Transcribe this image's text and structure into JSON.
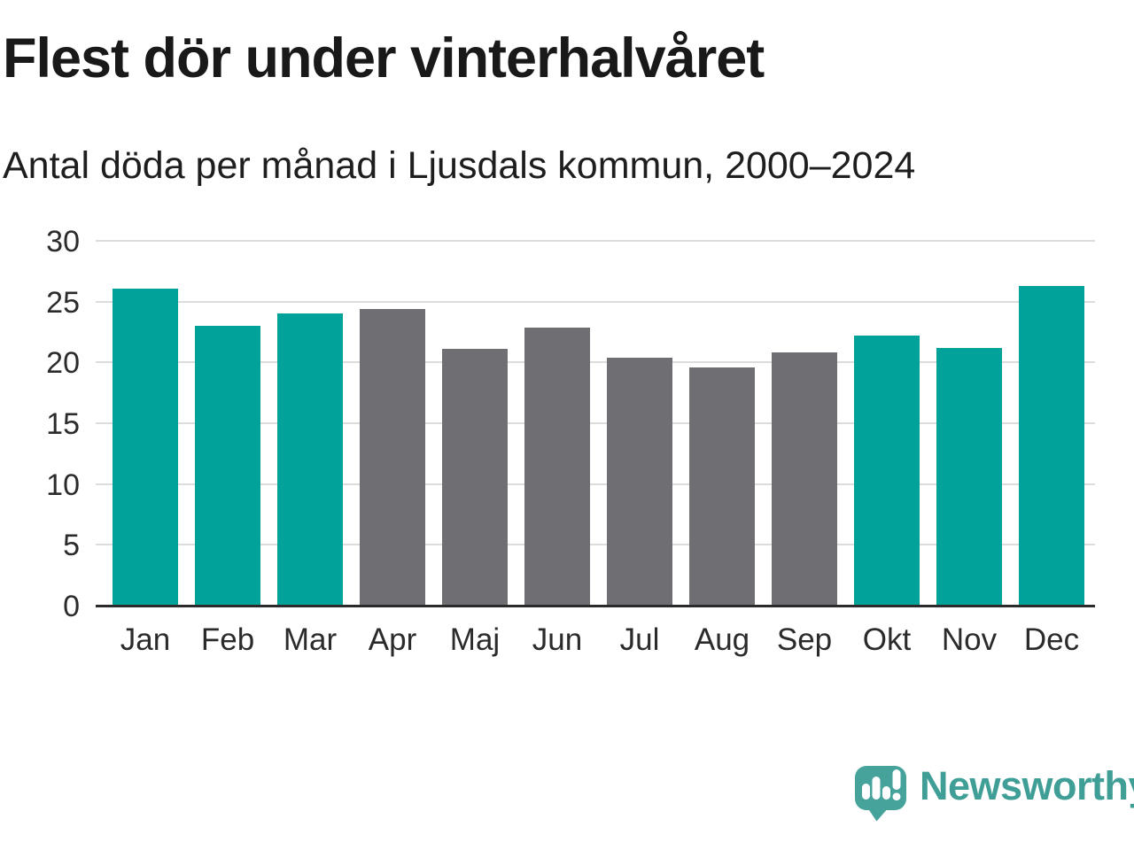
{
  "header": {
    "title": "Flest dör under vinterhalvåret",
    "subtitle": "Antal döda per månad i Ljusdals kommun, 2000–2024"
  },
  "chart_data": {
    "type": "bar",
    "title": "Flest dör under vinterhalvåret",
    "subtitle": "Antal döda per månad i Ljusdals kommun, 2000–2024",
    "categories": [
      "Jan",
      "Feb",
      "Mar",
      "Apr",
      "Maj",
      "Jun",
      "Jul",
      "Aug",
      "Sep",
      "Okt",
      "Nov",
      "Dec"
    ],
    "series": [
      {
        "name": "Antal döda per månad",
        "values": [
          26.1,
          23.0,
          24.0,
          24.4,
          21.1,
          22.9,
          20.4,
          19.6,
          20.8,
          22.2,
          21.2,
          26.3
        ]
      }
    ],
    "bar_color_keys": [
      "winter",
      "winter",
      "winter",
      "summer",
      "summer",
      "summer",
      "summer",
      "summer",
      "summer",
      "winter",
      "winter",
      "winter"
    ],
    "colors": {
      "winter": "#00a29a",
      "summer": "#6e6e73"
    },
    "xlabel": "",
    "ylabel": "",
    "ylim": [
      0,
      30
    ],
    "yticks": [
      0,
      5,
      10,
      15,
      20,
      25,
      30
    ],
    "grid": "horizontal",
    "legend": "none",
    "gridline_color": "#dcdcdc",
    "baseline_color": "#2b2b2b"
  },
  "footer": {
    "brand": "Newsworthy",
    "brand_color": "#3f9e96",
    "icon_color": "#46a39c",
    "logo_icon": "newsworthy-speech-bubble-bar-chart-icon"
  }
}
